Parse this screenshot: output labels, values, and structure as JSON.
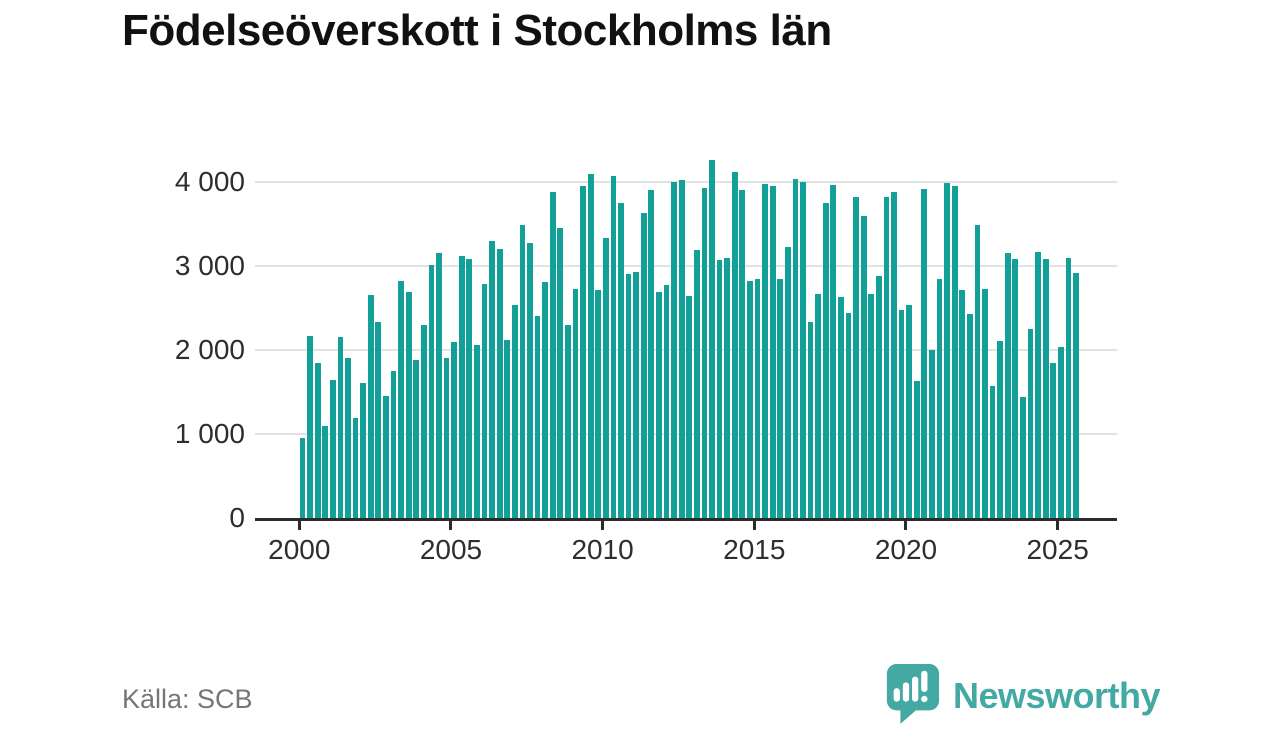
{
  "title": "Födelseöverskott i Stockholms län",
  "source": "Källa: SCB",
  "brand": {
    "name": "Newsworthy",
    "color": "#43a9a2"
  },
  "colors": {
    "bar": "#13a099",
    "grid": "#e2e2e2",
    "axis": "#2b2b2b",
    "text": "#2e2e2e",
    "muted": "#767676"
  },
  "chart_data": {
    "type": "bar",
    "title": "Födelseöverskott i Stockholms län",
    "xlabel": "",
    "ylabel": "",
    "ylim": [
      0,
      4300
    ],
    "grid": "horizontal",
    "y_axis": {
      "ticks": [
        {
          "label": "0",
          "value": 0
        },
        {
          "label": "1 000",
          "value": 1000
        },
        {
          "label": "2 000",
          "value": 2000
        },
        {
          "label": "3 000",
          "value": 3000
        },
        {
          "label": "4 000",
          "value": 4000
        }
      ]
    },
    "x_axis": {
      "ticks": [
        {
          "label": "2000",
          "year": 2000
        },
        {
          "label": "2005",
          "year": 2005
        },
        {
          "label": "2010",
          "year": 2010
        },
        {
          "label": "2015",
          "year": 2015
        },
        {
          "label": "2020",
          "year": 2020
        },
        {
          "label": "2025",
          "year": 2025
        }
      ]
    },
    "frequency": "quarterly",
    "series": [
      {
        "year": 2000,
        "values": [
          950,
          2170,
          1840,
          1090
        ]
      },
      {
        "year": 2001,
        "values": [
          1640,
          2150,
          1900,
          1190
        ]
      },
      {
        "year": 2002,
        "values": [
          1610,
          2650,
          2330,
          1450
        ]
      },
      {
        "year": 2003,
        "values": [
          1750,
          2820,
          2690,
          1880
        ]
      },
      {
        "year": 2004,
        "values": [
          2300,
          3010,
          3150,
          1910
        ]
      },
      {
        "year": 2005,
        "values": [
          2100,
          3120,
          3080,
          2060
        ]
      },
      {
        "year": 2006,
        "values": [
          2780,
          3300,
          3200,
          2120
        ]
      },
      {
        "year": 2007,
        "values": [
          2530,
          3490,
          3270,
          2410
        ]
      },
      {
        "year": 2008,
        "values": [
          2810,
          3880,
          3450,
          2300
        ]
      },
      {
        "year": 2009,
        "values": [
          2730,
          3950,
          4090,
          2720
        ]
      },
      {
        "year": 2010,
        "values": [
          3330,
          4070,
          3750,
          2910
        ]
      },
      {
        "year": 2011,
        "values": [
          2930,
          3630,
          3900,
          2690
        ]
      },
      {
        "year": 2012,
        "values": [
          2770,
          4000,
          4020,
          2640
        ]
      },
      {
        "year": 2013,
        "values": [
          3190,
          3930,
          4260,
          3070
        ]
      },
      {
        "year": 2014,
        "values": [
          3100,
          4120,
          3900,
          2820
        ]
      },
      {
        "year": 2015,
        "values": [
          2840,
          3980,
          3950,
          2840
        ]
      },
      {
        "year": 2016,
        "values": [
          3230,
          4030,
          4000,
          2330
        ]
      },
      {
        "year": 2017,
        "values": [
          2670,
          3750,
          3970,
          2630
        ]
      },
      {
        "year": 2018,
        "values": [
          2440,
          3820,
          3590,
          2670
        ]
      },
      {
        "year": 2019,
        "values": [
          2880,
          3820,
          3880,
          2480
        ]
      },
      {
        "year": 2020,
        "values": [
          2530,
          1630,
          3920,
          2000
        ]
      },
      {
        "year": 2021,
        "values": [
          2840,
          3990,
          3950,
          2720
        ]
      },
      {
        "year": 2022,
        "values": [
          2430,
          3490,
          2730,
          1570
        ]
      },
      {
        "year": 2023,
        "values": [
          2110,
          3160,
          3080,
          1440
        ]
      },
      {
        "year": 2024,
        "values": [
          2250,
          3170,
          3080,
          1840
        ]
      },
      {
        "year": 2025,
        "values": [
          2030,
          3100,
          2920
        ]
      }
    ]
  }
}
